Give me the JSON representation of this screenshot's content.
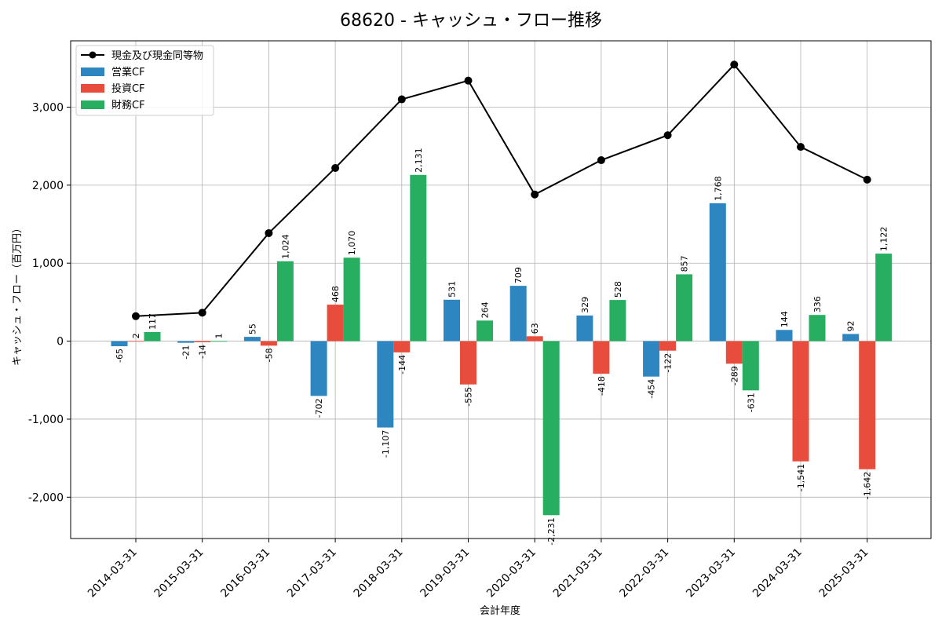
{
  "chart_data": {
    "type": "bar",
    "title": "68620 - キャッシュ・フロー推移",
    "xlabel": "会計年度",
    "ylabel": "キャッシュ・フロー（百万円）",
    "ylim": [
      -2530,
      3850
    ],
    "yticks": [
      -2000,
      -1000,
      0,
      1000,
      2000,
      3000
    ],
    "ytick_labels": [
      "-2,000",
      "-1,000",
      "0",
      "1,000",
      "2,000",
      "3,000"
    ],
    "grid": true,
    "legend_position": "top-left",
    "categories": [
      "2014-03-31",
      "2015-03-31",
      "2016-03-31",
      "2017-03-31",
      "2018-03-31",
      "2019-03-31",
      "2020-03-31",
      "2021-03-31",
      "2022-03-31",
      "2023-03-31",
      "2024-03-31",
      "2025-03-31"
    ],
    "series": [
      {
        "name": "営業CF",
        "kind": "bar",
        "color": "#2e86c1",
        "values": [
          -65,
          -21,
          55,
          -702,
          -1107,
          531,
          709,
          329,
          -454,
          1768,
          144,
          92
        ],
        "labels": [
          "-65",
          "-21",
          "55",
          "-702",
          "-1,107",
          "531",
          "709",
          "329",
          "-454",
          "1,768",
          "144",
          "92"
        ]
      },
      {
        "name": "投資CF",
        "kind": "bar",
        "color": "#e74c3c",
        "values": [
          2,
          -14,
          -58,
          468,
          -144,
          -555,
          63,
          -418,
          -122,
          -289,
          -1541,
          -1642
        ],
        "labels": [
          "2",
          "-14",
          "-58",
          "468",
          "-144",
          "-555",
          "63",
          "-418",
          "-122",
          "-289",
          "-1,541",
          "-1,642"
        ]
      },
      {
        "name": "財務CF",
        "kind": "bar",
        "color": "#27ae60",
        "values": [
          117,
          1,
          1024,
          1070,
          2131,
          264,
          -2231,
          528,
          857,
          -631,
          336,
          1122
        ],
        "labels": [
          "117",
          "1",
          "1,024",
          "1,070",
          "2,131",
          "264",
          "-2,231",
          "528",
          "857",
          "-631",
          "336",
          "1,122"
        ]
      }
    ],
    "line_series": {
      "name": "現金及び現金同等物",
      "kind": "line",
      "color": "#000000",
      "values": [
        320,
        365,
        1385,
        2220,
        3100,
        3340,
        1880,
        2320,
        2640,
        3545,
        2490,
        2070
      ]
    },
    "legend_order": [
      "現金及び現金同等物",
      "営業CF",
      "投資CF",
      "財務CF"
    ]
  }
}
